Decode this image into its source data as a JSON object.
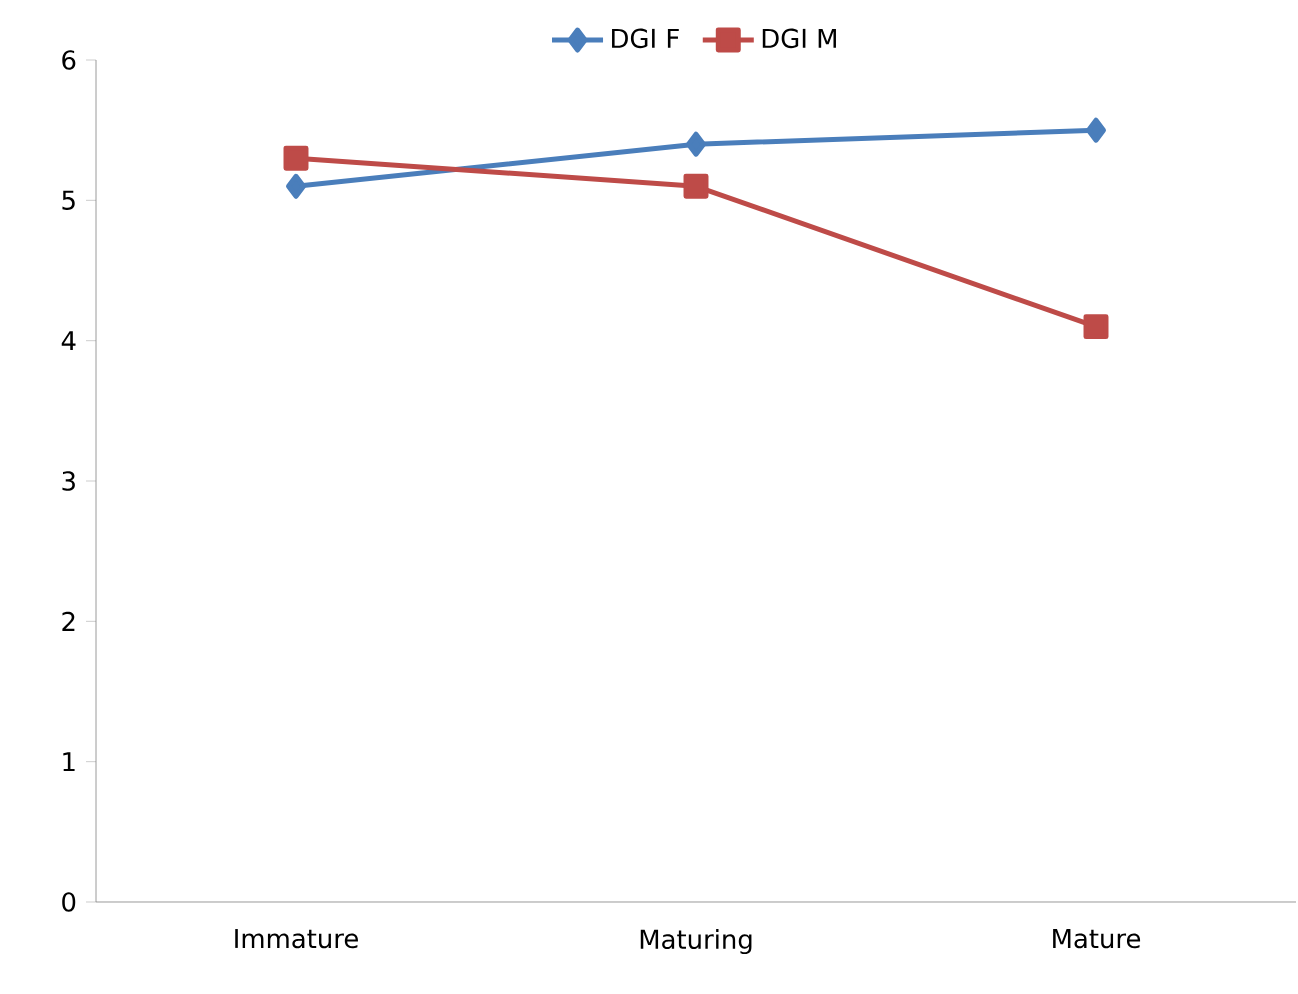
{
  "chart_data": {
    "type": "line",
    "categories": [
      "Immature",
      "Maturing",
      "Mature"
    ],
    "series": [
      {
        "name": "DGI F",
        "color": "#4a7ebb",
        "values": [
          5.1,
          5.4,
          5.5
        ],
        "marker": "diamond"
      },
      {
        "name": "DGI M",
        "color": "#be4b48",
        "values": [
          5.3,
          5.1,
          4.1
        ],
        "marker": "square"
      }
    ],
    "ylim": [
      0,
      6
    ],
    "yticks": [
      0,
      1,
      2,
      3,
      4,
      5,
      6
    ],
    "grid": false,
    "legend": "top",
    "line_style": "solid"
  }
}
